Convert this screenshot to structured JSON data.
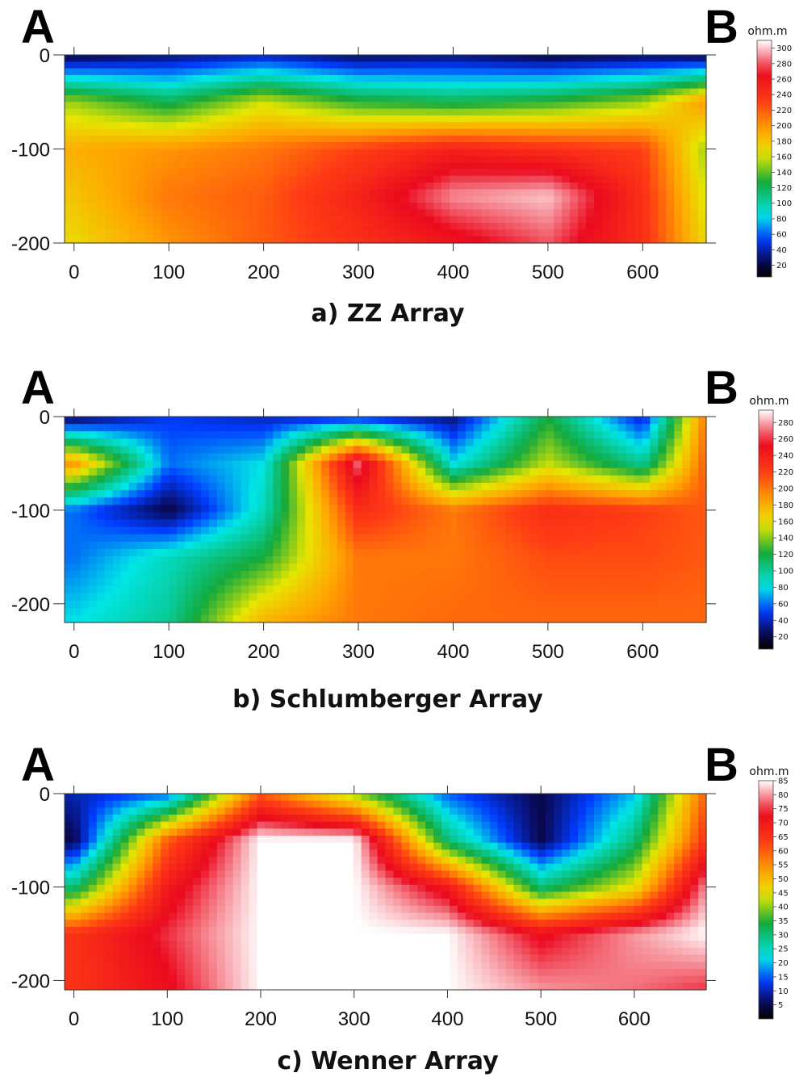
{
  "chart_data": [
    {
      "type": "heatmap",
      "panel_label_left": "A",
      "panel_label_right": "B",
      "caption": "a) ZZ Array",
      "x_ticks": [
        0,
        100,
        200,
        300,
        400,
        500,
        600
      ],
      "y_ticks": [
        0,
        -100,
        -200
      ],
      "xlim": [
        -10,
        667
      ],
      "ylim": [
        -200,
        0
      ],
      "colorbar": {
        "unit": "ohm.m",
        "ticks": [
          20,
          40,
          60,
          80,
          100,
          120,
          140,
          160,
          180,
          200,
          220,
          240,
          260,
          280,
          300
        ],
        "range": [
          5,
          310
        ]
      },
      "grid_x": [
        0,
        100,
        200,
        300,
        400,
        500,
        600,
        667
      ],
      "grid_y": [
        0,
        -50,
        -100,
        -150,
        -200
      ],
      "values": [
        [
          20,
          30,
          40,
          25,
          30,
          20,
          25,
          20
        ],
        [
          150,
          120,
          160,
          130,
          120,
          130,
          150,
          200
        ],
        [
          190,
          200,
          210,
          230,
          250,
          240,
          230,
          150
        ],
        [
          180,
          210,
          220,
          250,
          290,
          300,
          240,
          160
        ],
        [
          170,
          200,
          220,
          240,
          260,
          280,
          240,
          170
        ]
      ]
    },
    {
      "type": "heatmap",
      "panel_label_left": "A",
      "panel_label_right": "B",
      "caption": "b) Schlumberger Array",
      "x_ticks": [
        0,
        100,
        200,
        300,
        400,
        500,
        600
      ],
      "y_ticks": [
        0,
        -100,
        -200
      ],
      "xlim": [
        -10,
        667
      ],
      "ylim": [
        -220,
        0
      ],
      "colorbar": {
        "unit": "ohm.m",
        "ticks": [
          20,
          40,
          60,
          80,
          100,
          120,
          140,
          160,
          180,
          200,
          220,
          240,
          260,
          280
        ],
        "range": [
          5,
          295
        ]
      },
      "grid_x": [
        0,
        100,
        200,
        300,
        400,
        500,
        600,
        667
      ],
      "grid_y": [
        0,
        -50,
        -100,
        -150,
        -220
      ],
      "values": [
        [
          20,
          50,
          40,
          40,
          30,
          120,
          40,
          200
        ],
        [
          190,
          60,
          80,
          270,
          80,
          150,
          100,
          210
        ],
        [
          60,
          20,
          90,
          230,
          200,
          230,
          220,
          210
        ],
        [
          60,
          90,
          120,
          200,
          200,
          215,
          215,
          210
        ],
        [
          80,
          100,
          180,
          200,
          205,
          205,
          205,
          205
        ]
      ]
    },
    {
      "type": "heatmap",
      "panel_label_left": "A",
      "panel_label_right": "B",
      "caption": "c) Wenner Array",
      "x_ticks": [
        0,
        100,
        200,
        300,
        400,
        500,
        600
      ],
      "y_ticks": [
        0,
        -100,
        -200
      ],
      "xlim": [
        -10,
        677
      ],
      "ylim": [
        -210,
        0
      ],
      "colorbar": {
        "unit": "ohm.m",
        "ticks": [
          5,
          10,
          15,
          20,
          25,
          30,
          35,
          40,
          45,
          50,
          55,
          60,
          65,
          70,
          75,
          80,
          85
        ],
        "range": [
          0,
          85
        ]
      },
      "grid_x": [
        0,
        100,
        200,
        300,
        400,
        500,
        600,
        677
      ],
      "grid_y": [
        0,
        -50,
        -100,
        -150,
        -210
      ],
      "values": [
        [
          10,
          15,
          60,
          40,
          15,
          5,
          20,
          60
        ],
        [
          5,
          60,
          85,
          85,
          30,
          5,
          30,
          65
        ],
        [
          30,
          70,
          85,
          85,
          70,
          30,
          45,
          80
        ],
        [
          65,
          75,
          85,
          85,
          85,
          72,
          80,
          85
        ],
        [
          65,
          72,
          85,
          85,
          85,
          80,
          78,
          75
        ]
      ]
    }
  ]
}
